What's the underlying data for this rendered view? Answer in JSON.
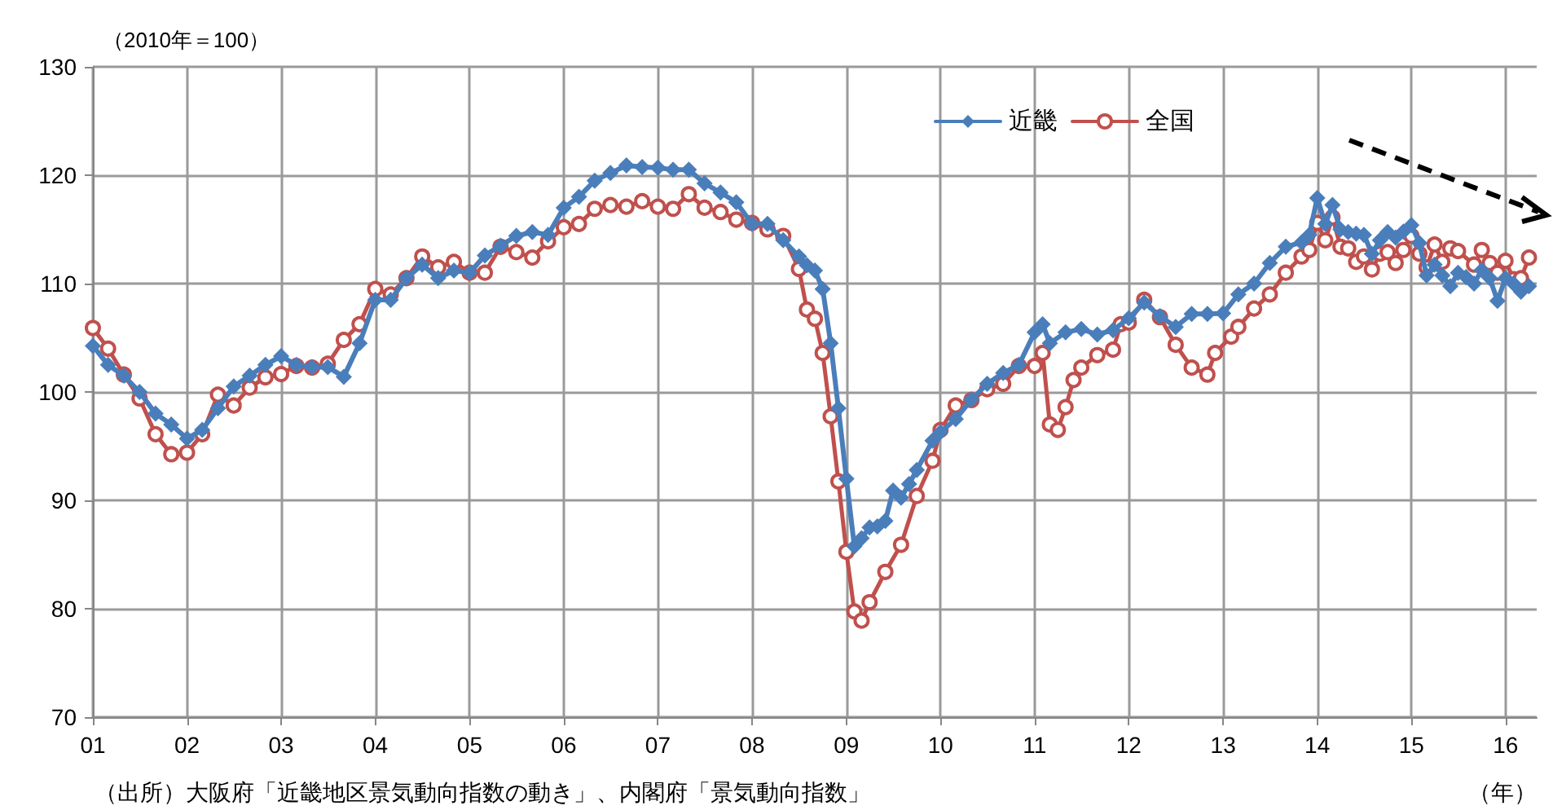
{
  "chart_data": {
    "type": "line",
    "ylabel": "（2010年＝100）",
    "xlabel": "（年）",
    "annotations": [
      "（出所）大阪府「近畿地区景気動向指数の動き」、内閣府「景気動向指数」"
    ],
    "xlim": [
      "2001-01",
      "2016-05"
    ],
    "xticks": [
      {
        "value": "2001-01",
        "label": "01"
      },
      {
        "value": "2002-01",
        "label": "02"
      },
      {
        "value": "2003-01",
        "label": "03"
      },
      {
        "value": "2004-01",
        "label": "04"
      },
      {
        "value": "2005-01",
        "label": "05"
      },
      {
        "value": "2006-01",
        "label": "06"
      },
      {
        "value": "2007-01",
        "label": "07"
      },
      {
        "value": "2008-01",
        "label": "08"
      },
      {
        "value": "2009-01",
        "label": "09"
      },
      {
        "value": "2010-01",
        "label": "10"
      },
      {
        "value": "2011-01",
        "label": "11"
      },
      {
        "value": "2012-01",
        "label": "12"
      },
      {
        "value": "2013-01",
        "label": "13"
      },
      {
        "value": "2014-01",
        "label": "14"
      },
      {
        "value": "2015-01",
        "label": "15"
      },
      {
        "value": "2016-01",
        "label": "16"
      }
    ],
    "ylim": [
      70,
      130
    ],
    "yticks": [
      70,
      80,
      90,
      100,
      110,
      120,
      130
    ],
    "grid": true,
    "legend": "top right",
    "series": [
      {
        "name": "近畿",
        "color": "#4a7ebb",
        "marker": "diamond",
        "x": [
          "2001-01",
          "2001-03",
          "2001-05",
          "2001-07",
          "2001-09",
          "2001-11",
          "2002-01",
          "2002-03",
          "2002-05",
          "2002-07",
          "2002-09",
          "2002-11",
          "2003-01",
          "2003-03",
          "2003-05",
          "2003-07",
          "2003-09",
          "2003-11",
          "2004-01",
          "2004-03",
          "2004-05",
          "2004-07",
          "2004-09",
          "2004-11",
          "2005-01",
          "2005-03",
          "2005-05",
          "2005-07",
          "2005-09",
          "2005-11",
          "2006-01",
          "2006-03",
          "2006-05",
          "2006-07",
          "2006-09",
          "2006-11",
          "2007-01",
          "2007-03",
          "2007-05",
          "2007-07",
          "2007-09",
          "2007-11",
          "2008-01",
          "2008-03",
          "2008-05",
          "2008-07",
          "2008-08",
          "2008-09",
          "2008-10",
          "2008-11",
          "2008-12",
          "2009-01",
          "2009-02",
          "2009-03",
          "2009-04",
          "2009-05",
          "2009-06",
          "2009-07",
          "2009-08",
          "2009-09",
          "2009-10",
          "2009-12",
          "2010-01",
          "2010-03",
          "2010-05",
          "2010-07",
          "2010-09",
          "2010-11",
          "2011-01",
          "2011-02",
          "2011-03",
          "2011-05",
          "2011-07",
          "2011-09",
          "2011-11",
          "2012-01",
          "2012-03",
          "2012-05",
          "2012-07",
          "2012-09",
          "2012-11",
          "2013-01",
          "2013-03",
          "2013-05",
          "2013-07",
          "2013-09",
          "2013-11",
          "2013-12",
          "2014-01",
          "2014-02",
          "2014-03",
          "2014-04",
          "2014-05",
          "2014-06",
          "2014-07",
          "2014-08",
          "2014-09",
          "2014-10",
          "2014-11",
          "2014-12",
          "2015-01",
          "2015-02",
          "2015-03",
          "2015-04",
          "2015-05",
          "2015-06",
          "2015-07",
          "2015-08",
          "2015-09",
          "2015-10",
          "2015-11",
          "2015-12",
          "2016-01",
          "2016-02",
          "2016-03",
          "2016-04"
        ],
        "values": [
          104.25,
          102.5,
          101.5,
          100,
          98,
          97,
          95.7,
          96.5,
          98.5,
          100.5,
          101.5,
          102.5,
          103.3,
          102.5,
          102.3,
          102.3,
          101.4,
          104.5,
          108.5,
          108.5,
          110.5,
          111.75,
          110.5,
          111.2,
          111,
          112.6,
          113.5,
          114.4,
          114.75,
          114.5,
          117,
          118,
          119.5,
          120.2,
          120.9,
          120.75,
          120.7,
          120.5,
          120.5,
          119.25,
          118.4,
          117.5,
          115.5,
          115.5,
          114,
          112.5,
          111.7,
          111.2,
          109.5,
          104.5,
          98.5,
          92,
          85.75,
          86.5,
          87.5,
          87.6,
          88.1,
          90.9,
          90.25,
          91.5,
          92.8,
          95.5,
          96.3,
          97.5,
          99.3,
          100.75,
          101.75,
          102.5,
          105.5,
          106.25,
          104.5,
          105.5,
          105.8,
          105.3,
          105.7,
          106.8,
          108.25,
          107,
          106,
          107.2,
          107.2,
          107.25,
          109,
          110,
          111.9,
          113.4,
          113.8,
          114.5,
          117.9,
          115.5,
          117.25,
          115,
          114.75,
          114.6,
          114.5,
          112.75,
          114,
          114.75,
          114.25,
          114.8,
          115.4,
          113.75,
          110.75,
          111.75,
          110.75,
          109.75,
          111,
          110.6,
          110,
          111.25,
          110.5,
          108.4,
          110.5,
          110,
          109.25,
          109.75
        ]
      },
      {
        "name": "全国",
        "color": "#c0504d",
        "marker": "circle",
        "x": [
          "2001-01",
          "2001-03",
          "2001-05",
          "2001-07",
          "2001-09",
          "2001-11",
          "2002-01",
          "2002-03",
          "2002-05",
          "2002-07",
          "2002-09",
          "2002-11",
          "2003-01",
          "2003-03",
          "2003-05",
          "2003-07",
          "2003-09",
          "2003-11",
          "2004-01",
          "2004-03",
          "2004-05",
          "2004-07",
          "2004-09",
          "2004-11",
          "2005-01",
          "2005-03",
          "2005-05",
          "2005-07",
          "2005-09",
          "2005-11",
          "2006-01",
          "2006-03",
          "2006-05",
          "2006-07",
          "2006-09",
          "2006-11",
          "2007-01",
          "2007-03",
          "2007-05",
          "2007-07",
          "2007-09",
          "2007-11",
          "2008-01",
          "2008-03",
          "2008-05",
          "2008-07",
          "2008-08",
          "2008-09",
          "2008-10",
          "2008-11",
          "2008-12",
          "2009-01",
          "2009-02",
          "2009-03",
          "2009-04",
          "2009-06",
          "2009-08",
          "2009-10",
          "2009-12",
          "2010-01",
          "2010-03",
          "2010-05",
          "2010-07",
          "2010-09",
          "2010-11",
          "2011-01",
          "2011-02",
          "2011-03",
          "2011-04",
          "2011-05",
          "2011-06",
          "2011-07",
          "2011-09",
          "2011-11",
          "2011-12",
          "2012-01",
          "2012-03",
          "2012-05",
          "2012-07",
          "2012-09",
          "2012-11",
          "2012-12",
          "2013-02",
          "2013-03",
          "2013-05",
          "2013-07",
          "2013-09",
          "2013-11",
          "2013-12",
          "2014-01",
          "2014-02",
          "2014-03",
          "2014-04",
          "2014-05",
          "2014-06",
          "2014-07",
          "2014-08",
          "2014-09",
          "2014-10",
          "2014-11",
          "2014-12",
          "2015-01",
          "2015-02",
          "2015-03",
          "2015-04",
          "2015-05",
          "2015-06",
          "2015-07",
          "2015-09",
          "2015-10",
          "2015-11",
          "2015-12",
          "2016-01",
          "2016-02",
          "2016-03",
          "2016-04"
        ],
        "values": [
          105.9,
          104,
          101.6,
          99.4,
          96.1,
          94.25,
          94.4,
          96.1,
          99.75,
          98.75,
          100.4,
          101.35,
          101.65,
          102.4,
          102.25,
          102.6,
          104.8,
          106.25,
          109.5,
          109,
          110.5,
          112.5,
          111.5,
          112,
          111,
          111,
          113.4,
          112.9,
          112.4,
          113.9,
          115.2,
          115.5,
          116.9,
          117.25,
          117.1,
          117.6,
          117.1,
          116.9,
          118.25,
          117,
          116.6,
          115.9,
          115.6,
          115,
          114.4,
          111.35,
          107.6,
          106.75,
          103.6,
          97.75,
          91.75,
          85.25,
          79.75,
          78.9,
          80.6,
          83.4,
          85.9,
          90.4,
          93.65,
          96.5,
          98.75,
          99.25,
          100.25,
          100.75,
          102.4,
          102.4,
          103.6,
          97,
          96.5,
          98.6,
          101.1,
          102.25,
          103.4,
          103.9,
          106.25,
          106.4,
          108.5,
          106.9,
          104.35,
          102.25,
          101.6,
          103.6,
          105.1,
          106,
          107.7,
          109,
          111,
          112.5,
          113.1,
          115.6,
          114,
          116.1,
          113.4,
          113.25,
          112,
          112.5,
          111.3,
          112.75,
          112.9,
          111.9,
          113.1,
          114.4,
          112.75,
          111.5,
          113.6,
          112,
          113.25,
          113,
          111.75,
          113.1,
          111.9,
          111,
          112.1,
          110.4,
          110.5,
          112.4
        ]
      }
    ]
  }
}
